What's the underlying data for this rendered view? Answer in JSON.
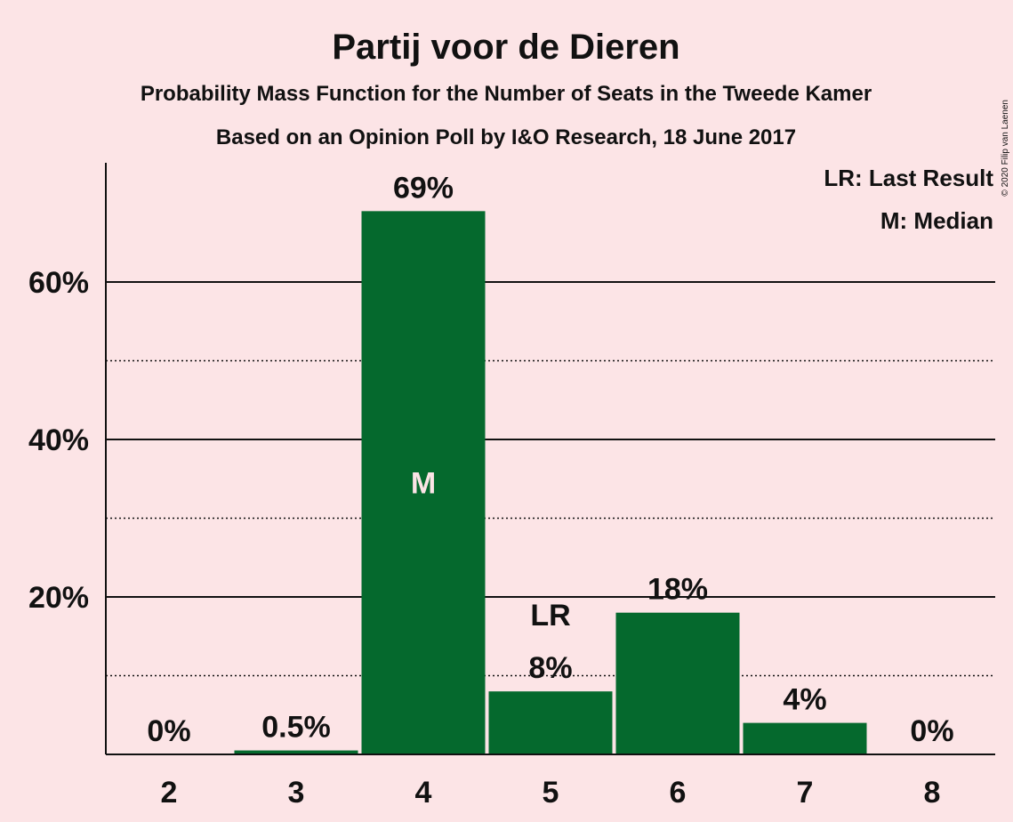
{
  "chart_data": {
    "type": "bar",
    "title": "Partij voor de Dieren",
    "subtitle": "Probability Mass Function for the Number of Seats in the Tweede Kamer",
    "subtitle2": "Based on an Opinion Poll by I&O Research, 18 June 2017",
    "categories": [
      "2",
      "3",
      "4",
      "5",
      "6",
      "7",
      "8"
    ],
    "values": [
      0,
      0.5,
      69,
      8,
      18,
      4,
      0
    ],
    "value_labels": [
      "0%",
      "0.5%",
      "69%",
      "8%",
      "18%",
      "4%",
      "0%"
    ],
    "ylim": [
      0,
      75
    ],
    "yticks": [
      20,
      40,
      60
    ],
    "ytick_labels": [
      "20%",
      "40%",
      "60%"
    ],
    "minor_gridlines": [
      10,
      30,
      50
    ],
    "bar_color": "#05692d",
    "median_index": 2,
    "median_marker": "M",
    "last_result_index": 3,
    "last_result_marker": "LR",
    "legend": [
      "LR: Last Result",
      "M: Median"
    ],
    "legend_position": "top-right",
    "copyright": "© 2020 Filip van Laenen"
  }
}
